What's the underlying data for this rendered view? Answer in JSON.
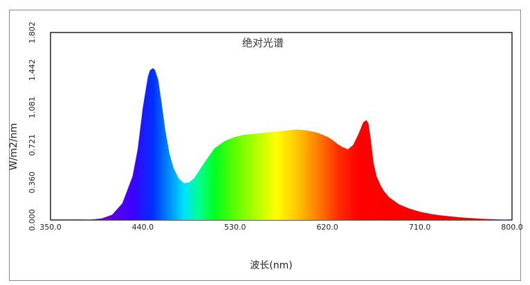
{
  "chart_data": {
    "type": "area",
    "title": "绝对光谱",
    "xlabel": "波长(nm)",
    "ylabel": "W/m2/nm",
    "xlim": [
      350,
      800
    ],
    "ylim": [
      0,
      1.802
    ],
    "x_ticks": [
      "350.0",
      "440.0",
      "530.0",
      "620.0",
      "710.0",
      "800.0"
    ],
    "y_ticks": [
      "0.000",
      "0.360",
      "0.721",
      "1.081",
      "1.442",
      "1.802"
    ],
    "grid": false,
    "fill": "visible-spectrum-gradient",
    "series": [
      {
        "x": [
          350,
          380,
          390,
          400,
          410,
          420,
          430,
          435,
          440,
          445,
          447,
          450,
          452,
          455,
          458,
          462,
          466,
          470,
          475,
          480,
          485,
          490,
          500,
          510,
          520,
          530,
          540,
          550,
          560,
          570,
          580,
          590,
          600,
          610,
          615,
          620,
          625,
          630,
          635,
          640,
          645,
          650,
          655,
          658,
          660,
          662,
          665,
          668,
          672,
          675,
          680,
          690,
          700,
          710,
          720,
          730,
          740,
          750,
          760,
          770,
          780,
          790,
          800
        ],
        "y": [
          0.0,
          0.0,
          0.004,
          0.015,
          0.05,
          0.16,
          0.42,
          0.68,
          1.08,
          1.38,
          1.44,
          1.46,
          1.44,
          1.35,
          1.15,
          0.86,
          0.64,
          0.5,
          0.4,
          0.355,
          0.36,
          0.4,
          0.55,
          0.69,
          0.76,
          0.8,
          0.82,
          0.83,
          0.84,
          0.85,
          0.86,
          0.87,
          0.86,
          0.84,
          0.82,
          0.8,
          0.77,
          0.73,
          0.7,
          0.68,
          0.72,
          0.82,
          0.94,
          0.96,
          0.93,
          0.8,
          0.55,
          0.42,
          0.33,
          0.28,
          0.22,
          0.15,
          0.11,
          0.08,
          0.06,
          0.045,
          0.035,
          0.025,
          0.018,
          0.012,
          0.008,
          0.004,
          0.0
        ]
      }
    ]
  }
}
